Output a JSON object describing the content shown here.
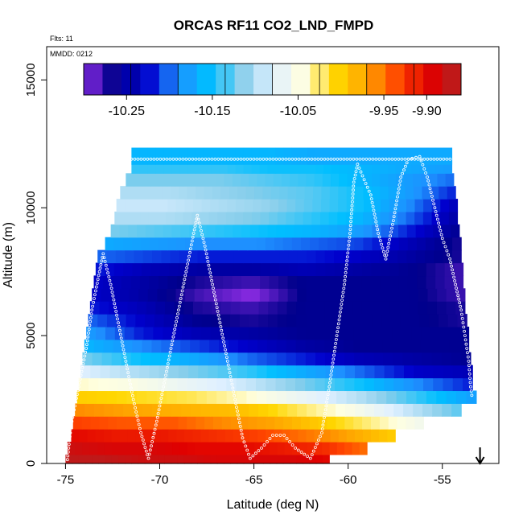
{
  "chart_data": {
    "type": "heatmap",
    "title": "ORCAS RF11 CO2_LND_FMPD",
    "flights_note": "Flts: 11",
    "date_note": "MMDD: 0212",
    "xlabel": "Latitude (deg N)",
    "ylabel": "Altitude (m)",
    "xlim": [
      -76,
      -52
    ],
    "ylim": [
      0,
      16300
    ],
    "x_ticks": [
      -75,
      -70,
      -65,
      -60,
      -55
    ],
    "x_tick_labels": [
      "-75",
      "-70",
      "-65",
      "-60",
      "-55"
    ],
    "y_ticks": [
      0,
      5000,
      10000,
      15000
    ],
    "y_tick_labels": [
      "0",
      "5000",
      "10000",
      "15000"
    ],
    "colorbar": {
      "min": -10.3,
      "max": -9.86,
      "ticks": [
        -10.25,
        -10.15,
        -10.05,
        -9.95,
        -9.9
      ],
      "tick_labels": [
        "-10.25",
        "-10.15",
        "-10.05",
        "-9.95",
        "-9.90"
      ],
      "colors": [
        "#8a2be2",
        "#00008b",
        "#0000cd",
        "#1e90ff",
        "#00bfff",
        "#87ceeb",
        "#e0f0ff",
        "#ffffe0",
        "#ffd700",
        "#ffa500",
        "#ff4500",
        "#e00000",
        "#b22222"
      ]
    },
    "field_rows": [
      {
        "alt": 100,
        "lat_min": -75.0,
        "lat_max": -61.0,
        "values": [
          -9.87,
          -9.87,
          -9.88,
          -9.88,
          -9.89,
          -9.89,
          -9.89,
          -9.9
        ]
      },
      {
        "alt": 600,
        "lat_min": -74.9,
        "lat_max": -59.0,
        "values": [
          -9.88,
          -9.89,
          -9.89,
          -9.9,
          -9.9,
          -9.91,
          -9.92,
          -9.95
        ]
      },
      {
        "alt": 1100,
        "lat_min": -74.7,
        "lat_max": -57.5,
        "values": [
          -9.9,
          -9.91,
          -9.91,
          -9.92,
          -9.93,
          -9.95,
          -9.97,
          -10.0
        ]
      },
      {
        "alt": 1600,
        "lat_min": -74.6,
        "lat_max": -56.0,
        "values": [
          -9.93,
          -9.94,
          -9.94,
          -9.96,
          -9.97,
          -10.0,
          -10.03,
          -10.06
        ]
      },
      {
        "alt": 2100,
        "lat_min": -74.5,
        "lat_max": -54.0,
        "values": [
          -9.96,
          -9.97,
          -9.98,
          -9.99,
          -10.02,
          -10.05,
          -10.09,
          -10.13
        ]
      },
      {
        "alt": 2600,
        "lat_min": -74.4,
        "lat_max": -53.2,
        "values": [
          -10.0,
          -10.01,
          -10.02,
          -10.04,
          -10.07,
          -10.1,
          -10.14,
          -10.18
        ]
      },
      {
        "alt": 3100,
        "lat_min": -74.3,
        "lat_max": -53.4,
        "values": [
          -10.04,
          -10.05,
          -10.07,
          -10.09,
          -10.12,
          -10.15,
          -10.19,
          -10.22
        ]
      },
      {
        "alt": 3600,
        "lat_min": -74.2,
        "lat_max": -53.4,
        "values": [
          -10.08,
          -10.1,
          -10.12,
          -10.14,
          -10.17,
          -10.2,
          -10.23,
          -10.24
        ]
      },
      {
        "alt": 4100,
        "lat_min": -74.1,
        "lat_max": -53.5,
        "values": [
          -10.12,
          -10.15,
          -10.17,
          -10.2,
          -10.22,
          -10.24,
          -10.25,
          -10.26
        ]
      },
      {
        "alt": 4600,
        "lat_min": -74.0,
        "lat_max": -53.6,
        "values": [
          -10.16,
          -10.19,
          -10.21,
          -10.23,
          -10.25,
          -10.26,
          -10.26,
          -10.26
        ]
      },
      {
        "alt": 5100,
        "lat_min": -73.9,
        "lat_max": -53.6,
        "values": [
          -10.18,
          -10.22,
          -10.24,
          -10.25,
          -10.26,
          -10.26,
          -10.26,
          -10.26
        ]
      },
      {
        "alt": 5600,
        "lat_min": -73.8,
        "lat_max": -53.7,
        "values": [
          -10.2,
          -10.23,
          -10.26,
          -10.27,
          -10.26,
          -10.26,
          -10.26,
          -10.27
        ]
      },
      {
        "alt": 6100,
        "lat_min": -73.7,
        "lat_max": -53.8,
        "values": [
          -10.22,
          -10.24,
          -10.27,
          -10.28,
          -10.26,
          -10.26,
          -10.26,
          -10.27
        ]
      },
      {
        "alt": 6600,
        "lat_min": -73.6,
        "lat_max": -53.8,
        "values": [
          -10.23,
          -10.25,
          -10.28,
          -10.3,
          -10.26,
          -10.26,
          -10.26,
          -10.28
        ]
      },
      {
        "alt": 7100,
        "lat_min": -73.5,
        "lat_max": -53.9,
        "values": [
          -10.23,
          -10.25,
          -10.27,
          -10.28,
          -10.26,
          -10.26,
          -10.26,
          -10.28
        ]
      },
      {
        "alt": 7600,
        "lat_min": -73.4,
        "lat_max": -53.9,
        "values": [
          -10.22,
          -10.24,
          -10.25,
          -10.25,
          -10.24,
          -10.25,
          -10.26,
          -10.28
        ]
      },
      {
        "alt": 8100,
        "lat_min": -73.3,
        "lat_max": -54.0,
        "values": [
          -10.2,
          -10.21,
          -10.22,
          -10.22,
          -10.22,
          -10.23,
          -10.25,
          -10.27
        ]
      },
      {
        "alt": 8600,
        "lat_min": -72.9,
        "lat_max": -54.0,
        "values": [
          -10.17,
          -10.18,
          -10.19,
          -10.19,
          -10.2,
          -10.21,
          -10.24,
          -10.27
        ]
      },
      {
        "alt": 9100,
        "lat_min": -72.6,
        "lat_max": -54.1,
        "values": [
          -10.12,
          -10.13,
          -10.14,
          -10.15,
          -10.16,
          -10.18,
          -10.22,
          -10.26
        ]
      },
      {
        "alt": 9600,
        "lat_min": -72.4,
        "lat_max": -54.2,
        "values": [
          -10.1,
          -10.1,
          -10.11,
          -10.12,
          -10.14,
          -10.16,
          -10.2,
          -10.25
        ]
      },
      {
        "alt": 10100,
        "lat_min": -72.3,
        "lat_max": -54.2,
        "values": [
          -10.09,
          -10.09,
          -10.1,
          -10.11,
          -10.13,
          -10.15,
          -10.19,
          -10.24
        ]
      },
      {
        "alt": 10600,
        "lat_min": -72.1,
        "lat_max": -54.3,
        "values": [
          -10.1,
          -10.1,
          -10.11,
          -10.12,
          -10.13,
          -10.15,
          -10.18,
          -10.22
        ]
      },
      {
        "alt": 11100,
        "lat_min": -71.8,
        "lat_max": -54.4,
        "values": [
          -10.12,
          -10.12,
          -10.12,
          -10.13,
          -10.14,
          -10.16,
          -10.18,
          -10.2
        ]
      },
      {
        "alt": 11600,
        "lat_min": -71.5,
        "lat_max": -54.5,
        "values": [
          -10.14,
          -10.14,
          -10.14,
          -10.15,
          -10.15,
          -10.16,
          -10.17,
          -10.18
        ]
      },
      {
        "alt": 11950,
        "lat_min": -71.5,
        "lat_max": -54.5,
        "values": [
          -10.16,
          -10.16,
          -10.16,
          -10.16,
          -10.17,
          -10.17,
          -10.17,
          -10.17
        ]
      }
    ],
    "flight_track": [
      {
        "lat": -74.9,
        "alt": 150
      },
      {
        "lat": -74.7,
        "alt": 1500
      },
      {
        "lat": -74.3,
        "alt": 3000
      },
      {
        "lat": -73.9,
        "alt": 4500
      },
      {
        "lat": -73.6,
        "alt": 6000
      },
      {
        "lat": -73.2,
        "alt": 7500
      },
      {
        "lat": -73.0,
        "alt": 8200
      },
      {
        "lat": -72.6,
        "alt": 7000
      },
      {
        "lat": -72.2,
        "alt": 5500
      },
      {
        "lat": -71.8,
        "alt": 4000
      },
      {
        "lat": -71.4,
        "alt": 2500
      },
      {
        "lat": -71.0,
        "alt": 1200
      },
      {
        "lat": -70.6,
        "alt": 200
      },
      {
        "lat": -70.2,
        "alt": 1500
      },
      {
        "lat": -69.8,
        "alt": 3000
      },
      {
        "lat": -69.4,
        "alt": 4500
      },
      {
        "lat": -69.0,
        "alt": 6000
      },
      {
        "lat": -68.6,
        "alt": 7500
      },
      {
        "lat": -68.2,
        "alt": 9000
      },
      {
        "lat": -68.0,
        "alt": 9700
      },
      {
        "lat": -67.6,
        "alt": 8500
      },
      {
        "lat": -67.2,
        "alt": 7000
      },
      {
        "lat": -66.8,
        "alt": 5500
      },
      {
        "lat": -66.4,
        "alt": 4000
      },
      {
        "lat": -66.0,
        "alt": 2500
      },
      {
        "lat": -65.6,
        "alt": 1000
      },
      {
        "lat": -65.2,
        "alt": 200
      },
      {
        "lat": -64.6,
        "alt": 600
      },
      {
        "lat": -64.0,
        "alt": 1100
      },
      {
        "lat": -63.4,
        "alt": 1100
      },
      {
        "lat": -62.8,
        "alt": 600
      },
      {
        "lat": -62.0,
        "alt": 200
      },
      {
        "lat": -61.4,
        "alt": 1200
      },
      {
        "lat": -61.0,
        "alt": 3000
      },
      {
        "lat": -60.6,
        "alt": 5000
      },
      {
        "lat": -60.2,
        "alt": 7000
      },
      {
        "lat": -59.9,
        "alt": 9000
      },
      {
        "lat": -59.7,
        "alt": 11000
      },
      {
        "lat": -59.5,
        "alt": 11700
      },
      {
        "lat": -58.8,
        "alt": 10500
      },
      {
        "lat": -58.4,
        "alt": 9000
      },
      {
        "lat": -58.0,
        "alt": 8000
      },
      {
        "lat": -57.6,
        "alt": 9500
      },
      {
        "lat": -57.2,
        "alt": 11200
      },
      {
        "lat": -56.8,
        "alt": 11900
      },
      {
        "lat": -56.2,
        "alt": 12000
      },
      {
        "lat": -55.8,
        "alt": 11200
      },
      {
        "lat": -55.4,
        "alt": 10000
      },
      {
        "lat": -55.0,
        "alt": 8800
      },
      {
        "lat": -54.6,
        "alt": 8000
      },
      {
        "lat": -54.3,
        "alt": 7000
      },
      {
        "lat": -54.0,
        "alt": 6000
      },
      {
        "lat": -53.8,
        "alt": 5000
      },
      {
        "lat": -53.6,
        "alt": 4000
      },
      {
        "lat": -53.5,
        "alt": 3000
      },
      {
        "lat": -53.4,
        "alt": 2500
      }
    ],
    "ceiling_track_alt": 11900,
    "ceiling_track_lat": [
      -71.5,
      -54.5
    ],
    "arrow_marker": {
      "lat": -53.0,
      "direction": "down"
    }
  }
}
